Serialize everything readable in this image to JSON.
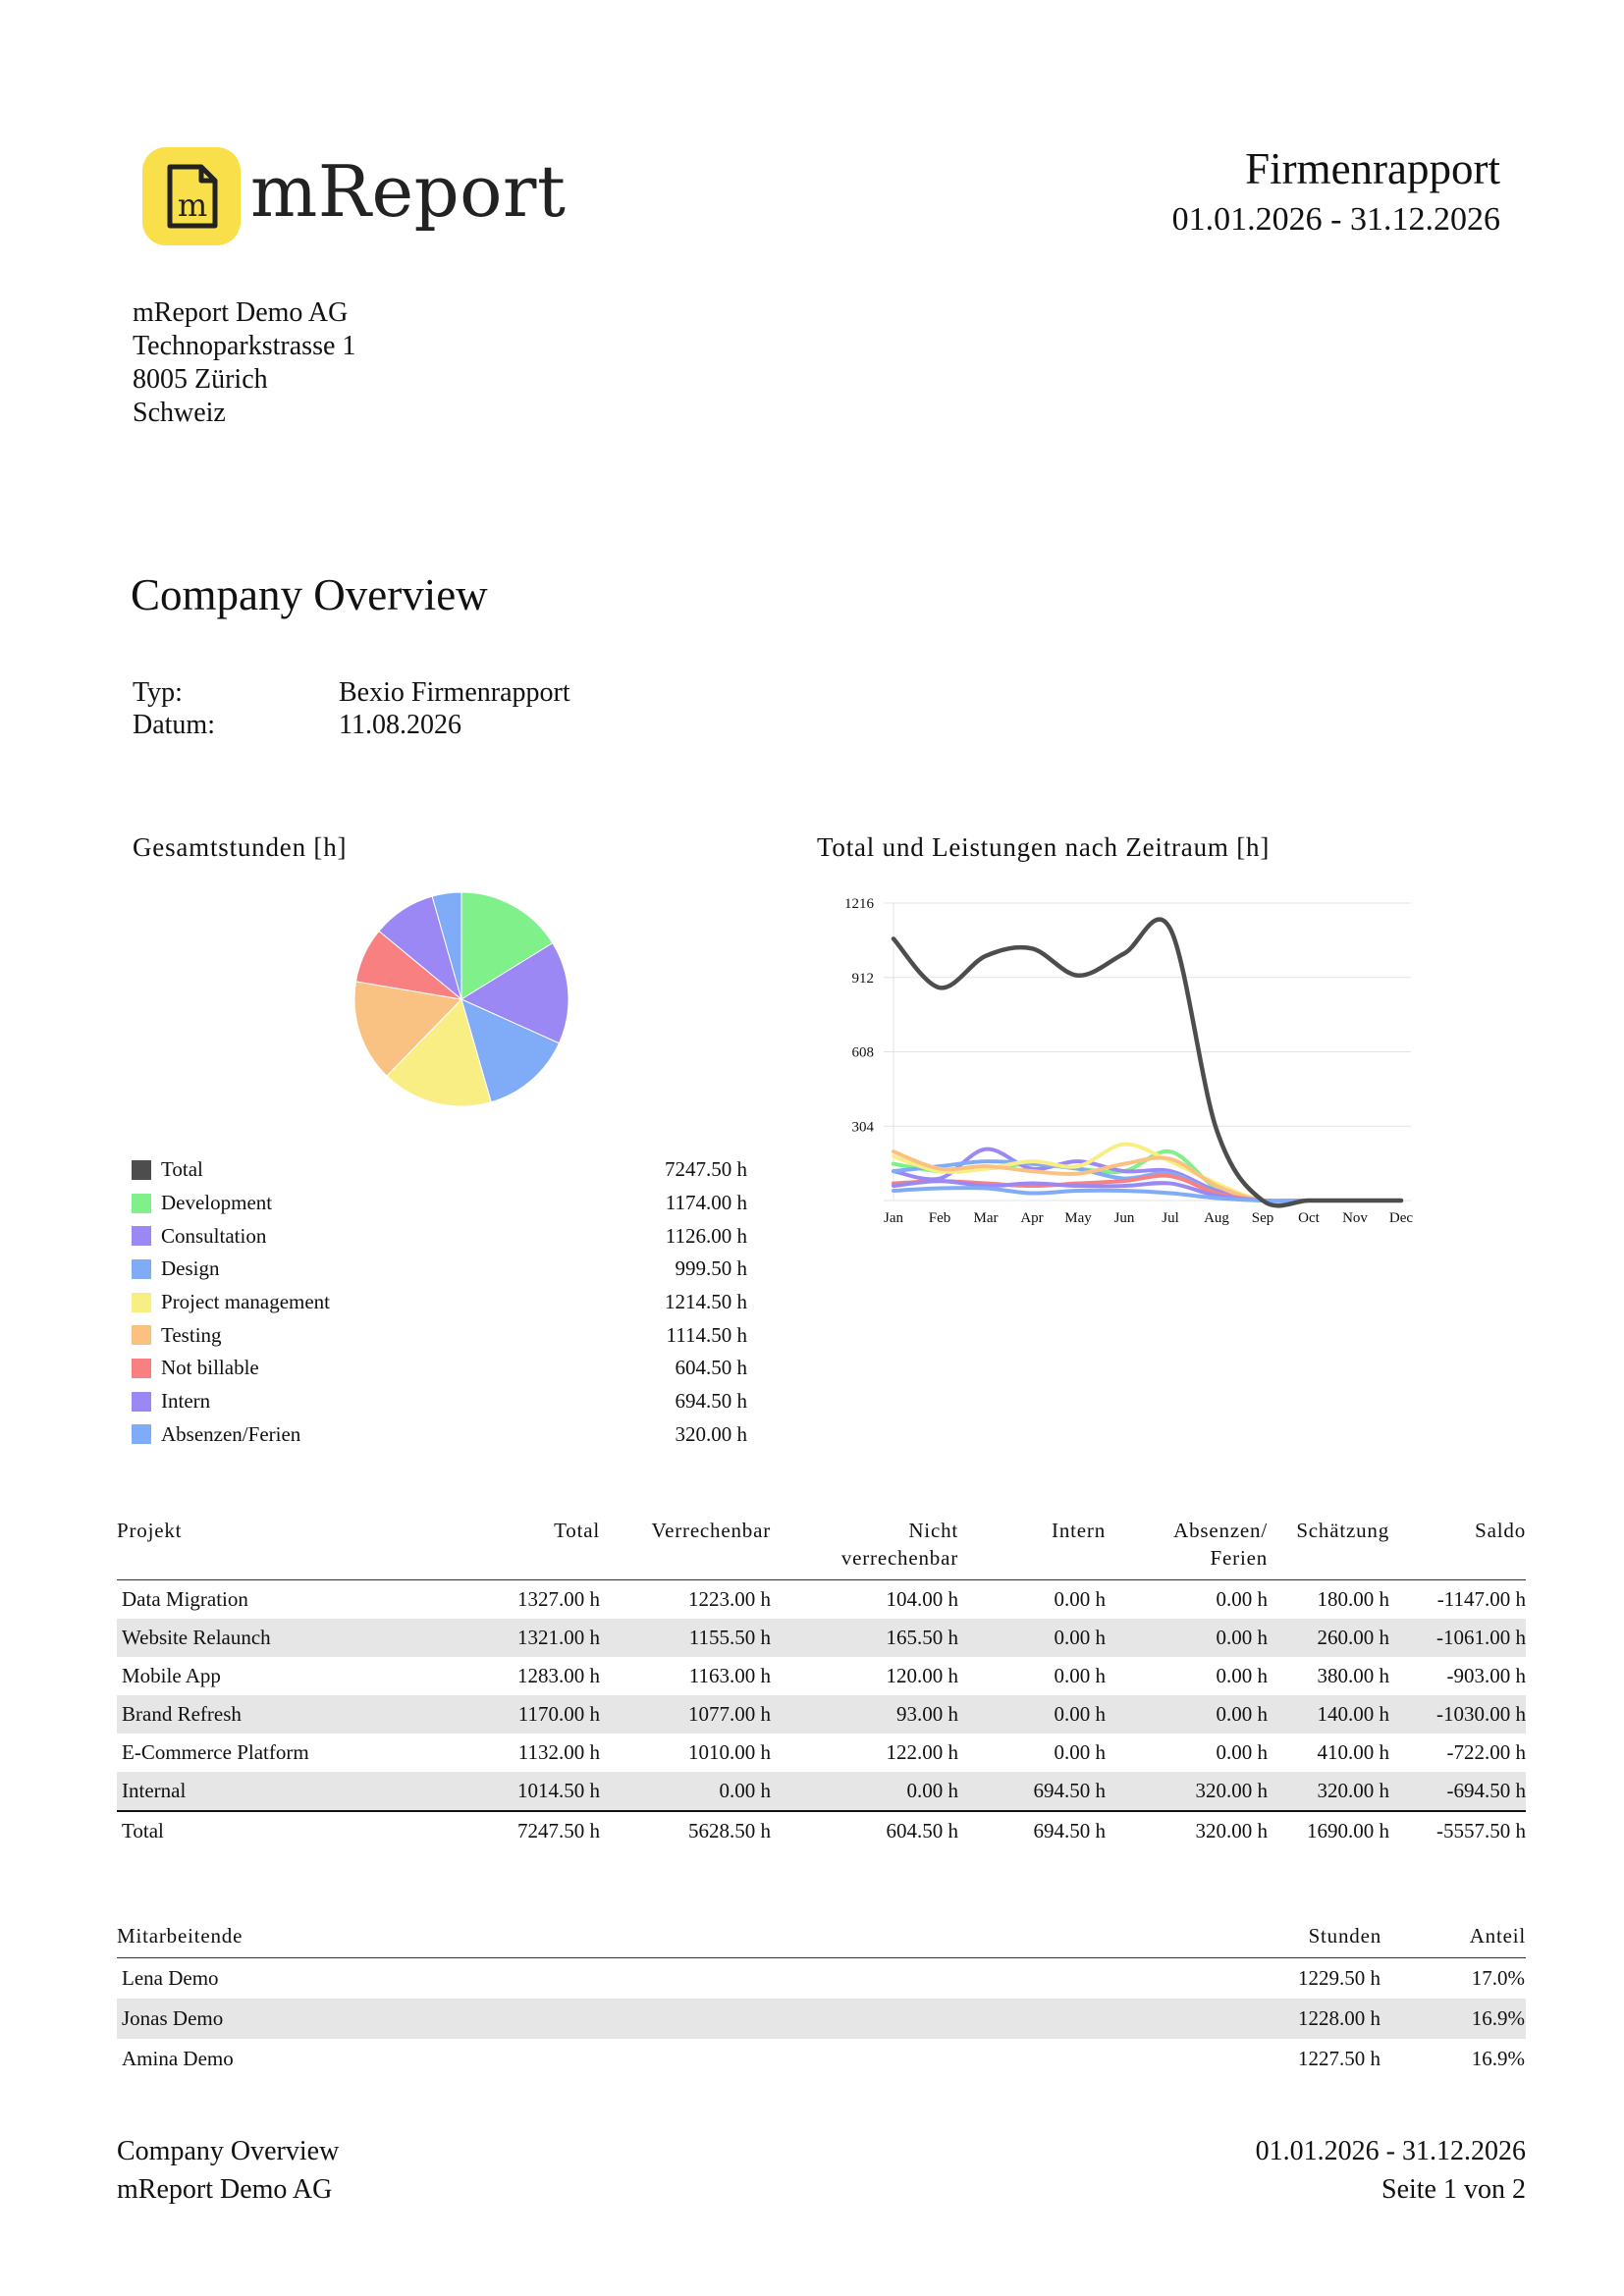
{
  "header": {
    "brand": "mReport",
    "logo_letter": "m",
    "logo_icon": "document-m-icon",
    "doc_title": "Firmenrapport",
    "date_range": "01.01.2026 - 31.12.2026"
  },
  "address": {
    "company": "mReport Demo AG",
    "street": "Technoparkstrasse 1",
    "city": "8005 Zürich",
    "country": "Schweiz"
  },
  "section_title": "Company Overview",
  "meta": {
    "type_label": "Typ:",
    "type_value": "Bexio Firmenrapport",
    "date_label": "Datum:",
    "date_value": "11.08.2026"
  },
  "pie_title": "Gesamtstunden [h]",
  "line_title": "Total und Leistungen nach Zeitraum [h]",
  "chart_data": [
    {
      "type": "pie",
      "title": "Gesamtstunden [h]",
      "slices": [
        {
          "label": "Development",
          "value": 1174.0,
          "color": "#80f08a"
        },
        {
          "label": "Consultation",
          "value": 1126.0,
          "color": "#9b88f5"
        },
        {
          "label": "Design",
          "value": 999.5,
          "color": "#80acf7"
        },
        {
          "label": "Project management",
          "value": 1214.5,
          "color": "#f9ee84"
        },
        {
          "label": "Testing",
          "value": 1114.5,
          "color": "#f9c283"
        },
        {
          "label": "Not billable",
          "value": 604.5,
          "color": "#f98080"
        },
        {
          "label": "Intern",
          "value": 694.5,
          "color": "#9b88f5"
        },
        {
          "label": "Absenzen/Ferien",
          "value": 320.0,
          "color": "#80acf7"
        }
      ]
    },
    {
      "type": "line",
      "title": "Total und Leistungen nach Zeitraum [h]",
      "categories": [
        "Jan",
        "Feb",
        "Mar",
        "Apr",
        "May",
        "Jun",
        "Jul",
        "Aug",
        "Sep",
        "Oct",
        "Nov",
        "Dec"
      ],
      "yticks": [
        304,
        608,
        912,
        1216
      ],
      "ylim": [
        0,
        1216
      ],
      "grid": true,
      "series": [
        {
          "name": "Total",
          "color": "#4d4d4d",
          "values": [
            1070,
            870,
            1000,
            1030,
            920,
            1010,
            1110,
            290,
            0,
            0,
            0,
            0
          ]
        },
        {
          "name": "Development",
          "color": "#80f08a",
          "values": [
            150,
            120,
            130,
            150,
            130,
            120,
            200,
            50,
            0,
            0,
            0,
            0
          ]
        },
        {
          "name": "Consultation",
          "color": "#9b88f5",
          "values": [
            120,
            90,
            210,
            130,
            160,
            120,
            120,
            40,
            0,
            0,
            0,
            0
          ]
        },
        {
          "name": "Design",
          "color": "#80acf7",
          "values": [
            120,
            140,
            160,
            150,
            130,
            90,
            110,
            30,
            0,
            0,
            0,
            0
          ]
        },
        {
          "name": "Project management",
          "color": "#f9ee84",
          "values": [
            180,
            120,
            130,
            160,
            140,
            230,
            160,
            70,
            0,
            0,
            0,
            0
          ]
        },
        {
          "name": "Testing",
          "color": "#f9c283",
          "values": [
            200,
            130,
            140,
            120,
            110,
            150,
            170,
            60,
            0,
            0,
            0,
            0
          ]
        },
        {
          "name": "Not billable",
          "color": "#f98080",
          "values": [
            70,
            80,
            70,
            60,
            70,
            80,
            100,
            30,
            0,
            0,
            0,
            0
          ]
        },
        {
          "name": "Intern",
          "color": "#9b88f5",
          "values": [
            60,
            80,
            60,
            70,
            60,
            60,
            70,
            20,
            0,
            0,
            0,
            0
          ]
        },
        {
          "name": "Absenzen/Ferien",
          "color": "#80acf7",
          "values": [
            40,
            50,
            50,
            30,
            40,
            40,
            30,
            10,
            0,
            0,
            0,
            0
          ]
        }
      ]
    }
  ],
  "legend": [
    {
      "label": "Total",
      "value": "7247.50 h",
      "color": "#4d4d4d"
    },
    {
      "label": "Development",
      "value": "1174.00 h",
      "color": "#80f08a"
    },
    {
      "label": "Consultation",
      "value": "1126.00 h",
      "color": "#9b88f5"
    },
    {
      "label": "Design",
      "value": "999.50 h",
      "color": "#80acf7"
    },
    {
      "label": "Project management",
      "value": "1214.50 h",
      "color": "#f9ee84"
    },
    {
      "label": "Testing",
      "value": "1114.50 h",
      "color": "#f9c283"
    },
    {
      "label": "Not billable",
      "value": "604.50 h",
      "color": "#f98080"
    },
    {
      "label": "Intern",
      "value": "694.50 h",
      "color": "#9b88f5"
    },
    {
      "label": "Absenzen/Ferien",
      "value": "320.00 h",
      "color": "#80acf7"
    }
  ],
  "projects": {
    "headers": [
      "Projekt",
      "Total",
      "Verrechenbar",
      "Nicht\nverrechenbar",
      "Intern",
      "Absenzen/\nFerien",
      "Schätzung",
      "Saldo"
    ],
    "rows": [
      [
        "Data Migration",
        "1327.00 h",
        "1223.00 h",
        "104.00 h",
        "0.00 h",
        "0.00 h",
        "180.00 h",
        "-1147.00 h"
      ],
      [
        "Website Relaunch",
        "1321.00 h",
        "1155.50 h",
        "165.50 h",
        "0.00 h",
        "0.00 h",
        "260.00 h",
        "-1061.00 h"
      ],
      [
        "Mobile App",
        "1283.00 h",
        "1163.00 h",
        "120.00 h",
        "0.00 h",
        "0.00 h",
        "380.00 h",
        "-903.00 h"
      ],
      [
        "Brand Refresh",
        "1170.00 h",
        "1077.00 h",
        "93.00 h",
        "0.00 h",
        "0.00 h",
        "140.00 h",
        "-1030.00 h"
      ],
      [
        "E-Commerce Platform",
        "1132.00 h",
        "1010.00 h",
        "122.00 h",
        "0.00 h",
        "0.00 h",
        "410.00 h",
        "-722.00 h"
      ],
      [
        "Internal",
        "1014.50 h",
        "0.00 h",
        "0.00 h",
        "694.50 h",
        "320.00 h",
        "320.00 h",
        "-694.50 h"
      ]
    ],
    "total": [
      "Total",
      "7247.50 h",
      "5628.50 h",
      "604.50 h",
      "694.50 h",
      "320.00 h",
      "1690.00 h",
      "-5557.50 h"
    ]
  },
  "employees": {
    "headers": [
      "Mitarbeitende",
      "Stunden",
      "Anteil"
    ],
    "rows": [
      [
        "Lena Demo",
        "1229.50 h",
        "17.0%"
      ],
      [
        "Jonas Demo",
        "1228.00 h",
        "16.9%"
      ],
      [
        "Amina Demo",
        "1227.50 h",
        "16.9%"
      ]
    ]
  },
  "footer": {
    "left_title": "Company Overview",
    "left_company": "mReport Demo AG",
    "right_range": "01.01.2026 - 31.12.2026",
    "page": "Seite 1 von 2"
  }
}
